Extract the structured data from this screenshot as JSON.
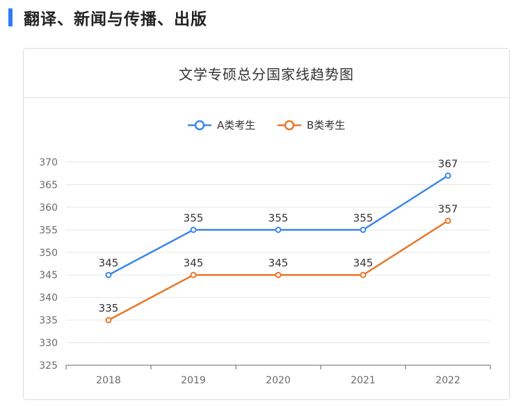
{
  "section": {
    "title": "翻译、新闻与传播、出版"
  },
  "chart_data": {
    "type": "line",
    "title": "文学专硕总分国家线趋势图",
    "categories": [
      "2018",
      "2019",
      "2020",
      "2021",
      "2022"
    ],
    "series": [
      {
        "name": "A类考生",
        "color": "#3b86ea",
        "values": [
          345,
          355,
          355,
          355,
          367
        ]
      },
      {
        "name": "B类考生",
        "color": "#e8762c",
        "values": [
          335,
          345,
          345,
          345,
          357
        ]
      }
    ],
    "ylim": [
      325,
      370
    ],
    "yticks": [
      325,
      330,
      335,
      340,
      345,
      350,
      355,
      360,
      365,
      370
    ],
    "xlabel": "",
    "ylabel": "",
    "grid": true,
    "legend": "top-center",
    "data_labels": true
  }
}
